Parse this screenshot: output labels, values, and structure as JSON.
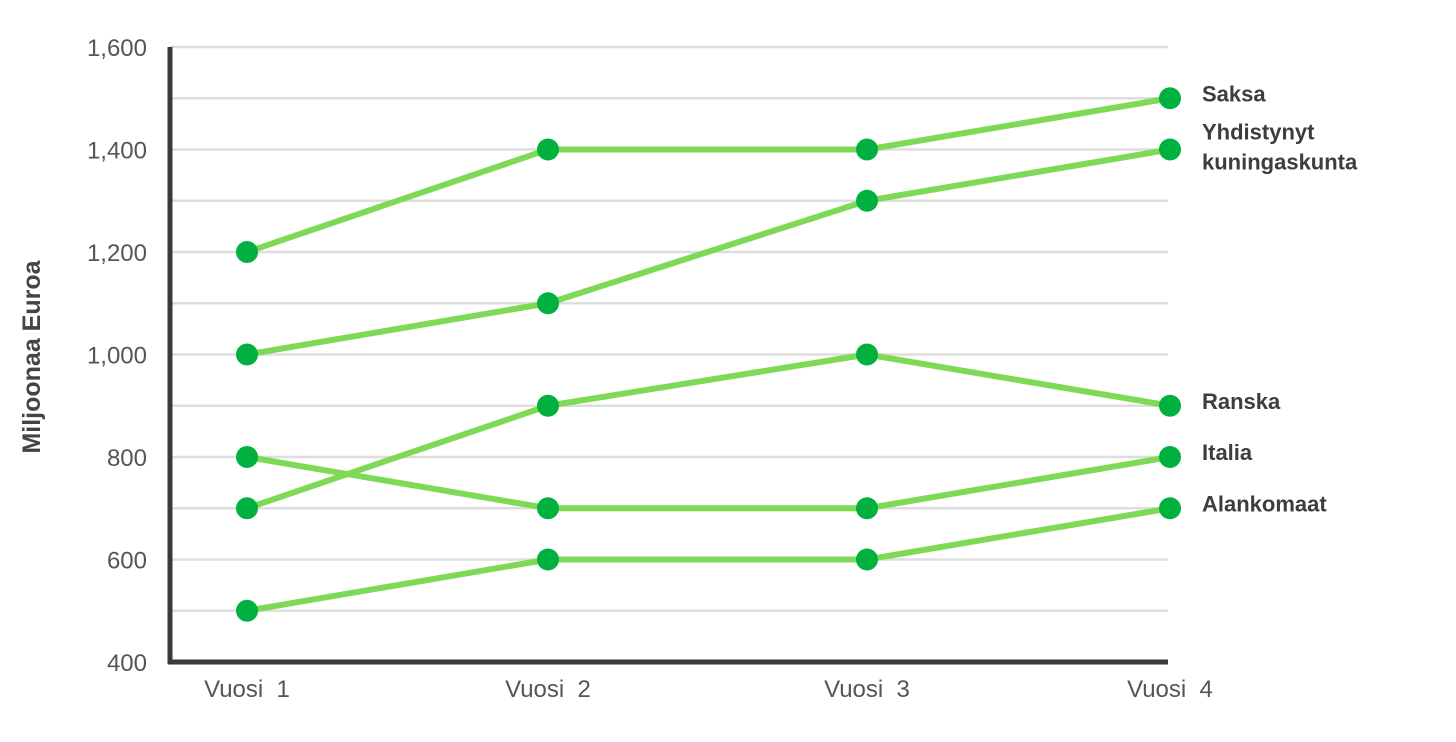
{
  "chart_data": {
    "type": "line",
    "categories": [
      "Vuosi  1",
      "Vuosi  2",
      "Vuosi  3",
      "Vuosi  4"
    ],
    "ylabel": "Miljoonaa Euroa",
    "ylim": [
      400,
      1600
    ],
    "yticks": [
      400,
      600,
      800,
      1000,
      1200,
      1400,
      1600
    ],
    "ytick_labels": [
      "400",
      "600",
      "800",
      "1,000",
      "1,200",
      "1,400",
      "1,600"
    ],
    "grid": true,
    "line_color": "#7ed957",
    "marker_color": "#00b140",
    "axis_color": "#3a3a3a",
    "series": [
      {
        "name": "Saksa",
        "values": [
          1200,
          1400,
          1400,
          1500
        ]
      },
      {
        "name": "Yhdistynyt kuningaskunta",
        "label_lines": [
          "Yhdistynyt",
          "kuningaskunta"
        ],
        "values": [
          1000,
          1100,
          1300,
          1400
        ]
      },
      {
        "name": "Ranska",
        "values": [
          700,
          900,
          1000,
          900
        ]
      },
      {
        "name": "Italia",
        "values": [
          800,
          700,
          700,
          800
        ]
      },
      {
        "name": "Alankomaat",
        "values": [
          500,
          600,
          600,
          700
        ]
      }
    ]
  }
}
